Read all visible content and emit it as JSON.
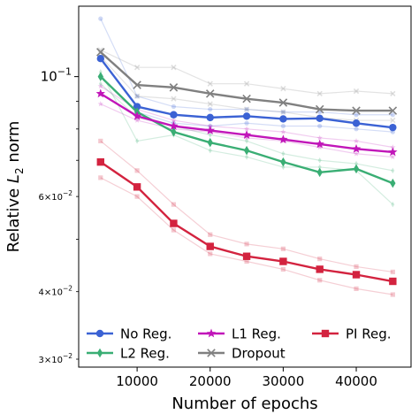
{
  "chart_data": {
    "type": "line",
    "xlabel": "Number of epochs",
    "ylabel_prefix": "Relative ",
    "ylabel_sym": "L",
    "ylabel_sub": "2",
    "ylabel_suffix": " norm",
    "yscale": "log",
    "xlim": [
      2000,
      47500
    ],
    "ylim": [
      0.029,
      0.135
    ],
    "x": [
      5000,
      10000,
      15000,
      20000,
      25000,
      30000,
      35000,
      40000,
      45000
    ],
    "xticks": [
      10000,
      20000,
      30000,
      40000
    ],
    "xtick_labels": [
      "10000",
      "20000",
      "30000",
      "40000"
    ],
    "yticks_major": [
      {
        "value": 0.1,
        "base": "10",
        "exp": "−1"
      }
    ],
    "yticks_minor": [
      {
        "value": 0.03,
        "mant": "3",
        "base": "10",
        "exp": "−2"
      },
      {
        "value": 0.04,
        "mant": "4",
        "base": "10",
        "exp": "−2"
      },
      {
        "value": 0.06,
        "mant": "6",
        "base": "10",
        "exp": "−2"
      }
    ],
    "series": [
      {
        "name": "No Reg.",
        "color": "#3b62d4",
        "marker": "circle",
        "values": [
          0.108,
          0.088,
          0.085,
          0.084,
          0.0845,
          0.0835,
          0.0837,
          0.082,
          0.0805
        ],
        "runs": [
          [
            0.128,
            0.092,
            0.088,
            0.087,
            0.087,
            0.086,
            0.086,
            0.085,
            0.085
          ],
          [
            0.1,
            0.086,
            0.082,
            0.081,
            0.082,
            0.081,
            0.081,
            0.08,
            0.079
          ]
        ]
      },
      {
        "name": "L2 Reg.",
        "color": "#3aae74",
        "marker": "diamond",
        "values": [
          0.1,
          0.086,
          0.079,
          0.0755,
          0.073,
          0.0695,
          0.0665,
          0.0675,
          0.0635
        ],
        "runs": [
          [
            0.102,
            0.076,
            0.078,
            0.073,
            0.071,
            0.068,
            0.068,
            0.067,
            0.058
          ],
          [
            0.097,
            0.084,
            0.081,
            0.078,
            0.076,
            0.072,
            0.07,
            0.069,
            0.067
          ]
        ]
      },
      {
        "name": "L1 Reg.",
        "color": "#c116b9",
        "marker": "star",
        "values": [
          0.093,
          0.0845,
          0.081,
          0.0795,
          0.078,
          0.0765,
          0.075,
          0.0735,
          0.0725
        ],
        "runs": [
          [
            0.089,
            0.083,
            0.08,
            0.079,
            0.077,
            0.076,
            0.074,
            0.072,
            0.071
          ],
          [
            0.096,
            0.087,
            0.083,
            0.081,
            0.08,
            0.079,
            0.077,
            0.076,
            0.074
          ]
        ]
      },
      {
        "name": "Dropout",
        "color": "#808080",
        "marker": "x",
        "values": [
          0.111,
          0.0965,
          0.0955,
          0.093,
          0.091,
          0.0895,
          0.087,
          0.0865,
          0.0865
        ],
        "runs": [
          [
            0.112,
            0.104,
            0.104,
            0.097,
            0.097,
            0.095,
            0.093,
            0.094,
            0.093
          ],
          [
            0.109,
            0.092,
            0.091,
            0.089,
            0.087,
            0.086,
            0.084,
            0.083,
            0.083
          ]
        ]
      },
      {
        "name": "PI Reg.",
        "color": "#d3233f",
        "marker": "square",
        "values": [
          0.0695,
          0.0625,
          0.0535,
          0.0485,
          0.0465,
          0.0455,
          0.044,
          0.043,
          0.0418
        ],
        "runs": [
          [
            0.076,
            0.067,
            0.058,
            0.051,
            0.049,
            0.048,
            0.046,
            0.0445,
            0.0435
          ],
          [
            0.065,
            0.06,
            0.052,
            0.047,
            0.0455,
            0.044,
            0.042,
            0.0405,
            0.0395
          ]
        ]
      }
    ],
    "legend": {
      "position": "bottom",
      "ncol": 3
    },
    "grid": false
  }
}
